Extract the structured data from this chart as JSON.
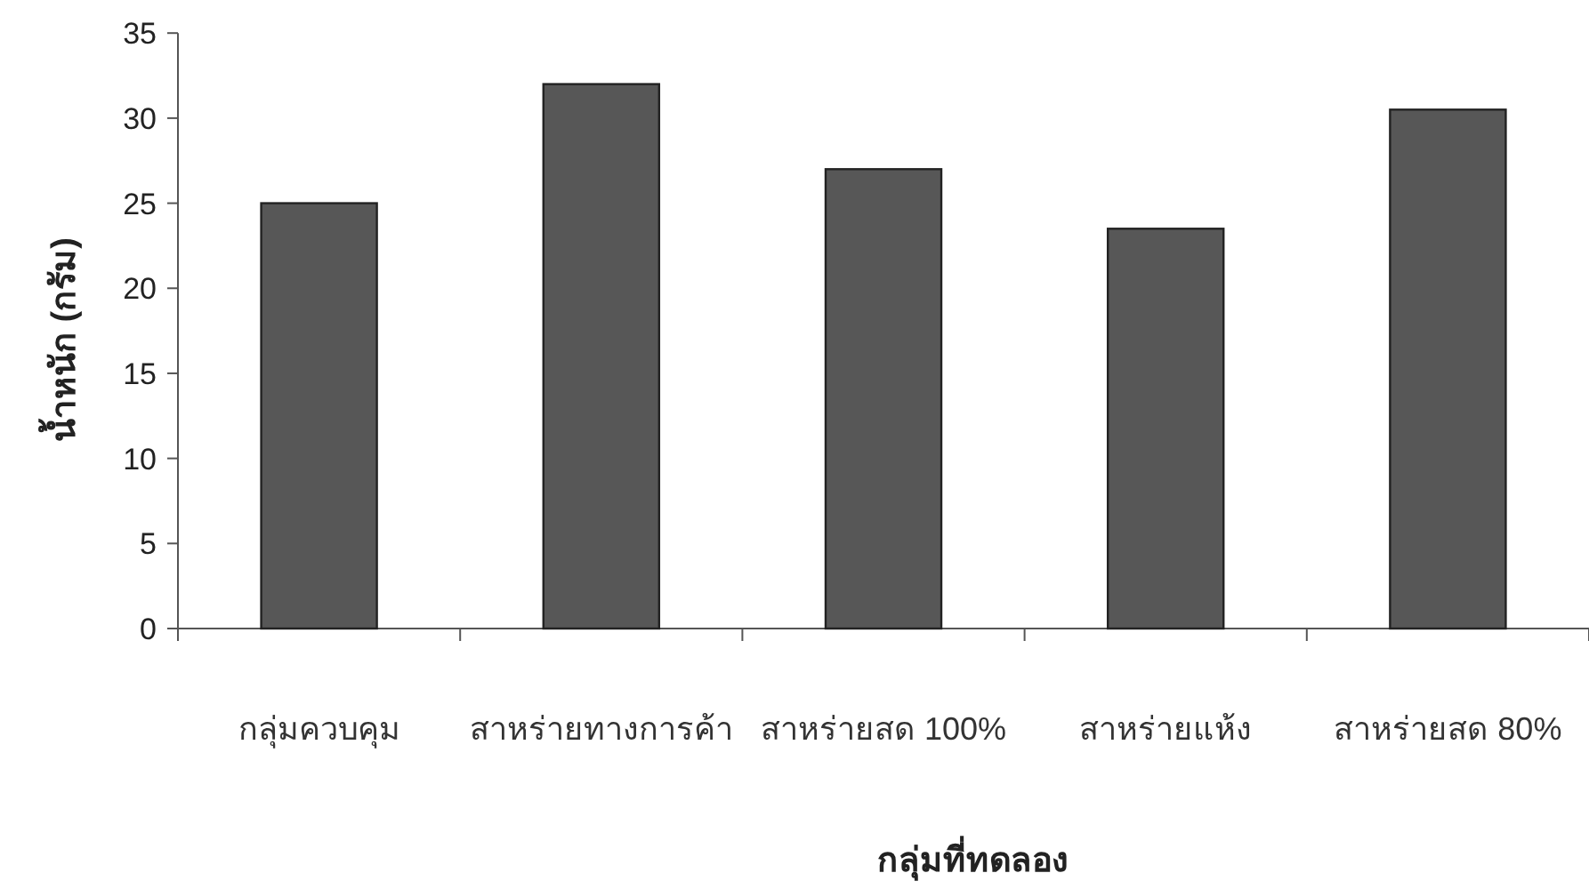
{
  "chart_data": {
    "type": "bar",
    "xlabel": "กลุ่มที่ทดลอง",
    "ylabel": "น้ำหนัก (กรัม)",
    "categories": [
      "กลุ่มควบคุม",
      "สาหร่ายทางการค้า",
      "สาหร่ายสด 100%",
      "สาหร่ายแห้ง",
      "สาหร่ายสด 80%"
    ],
    "values": [
      25,
      32,
      27,
      23.5,
      30.5
    ],
    "color": "#575757",
    "ylim": [
      0,
      35
    ],
    "yticks": [
      0,
      5,
      10,
      15,
      20,
      25,
      30,
      35
    ]
  }
}
